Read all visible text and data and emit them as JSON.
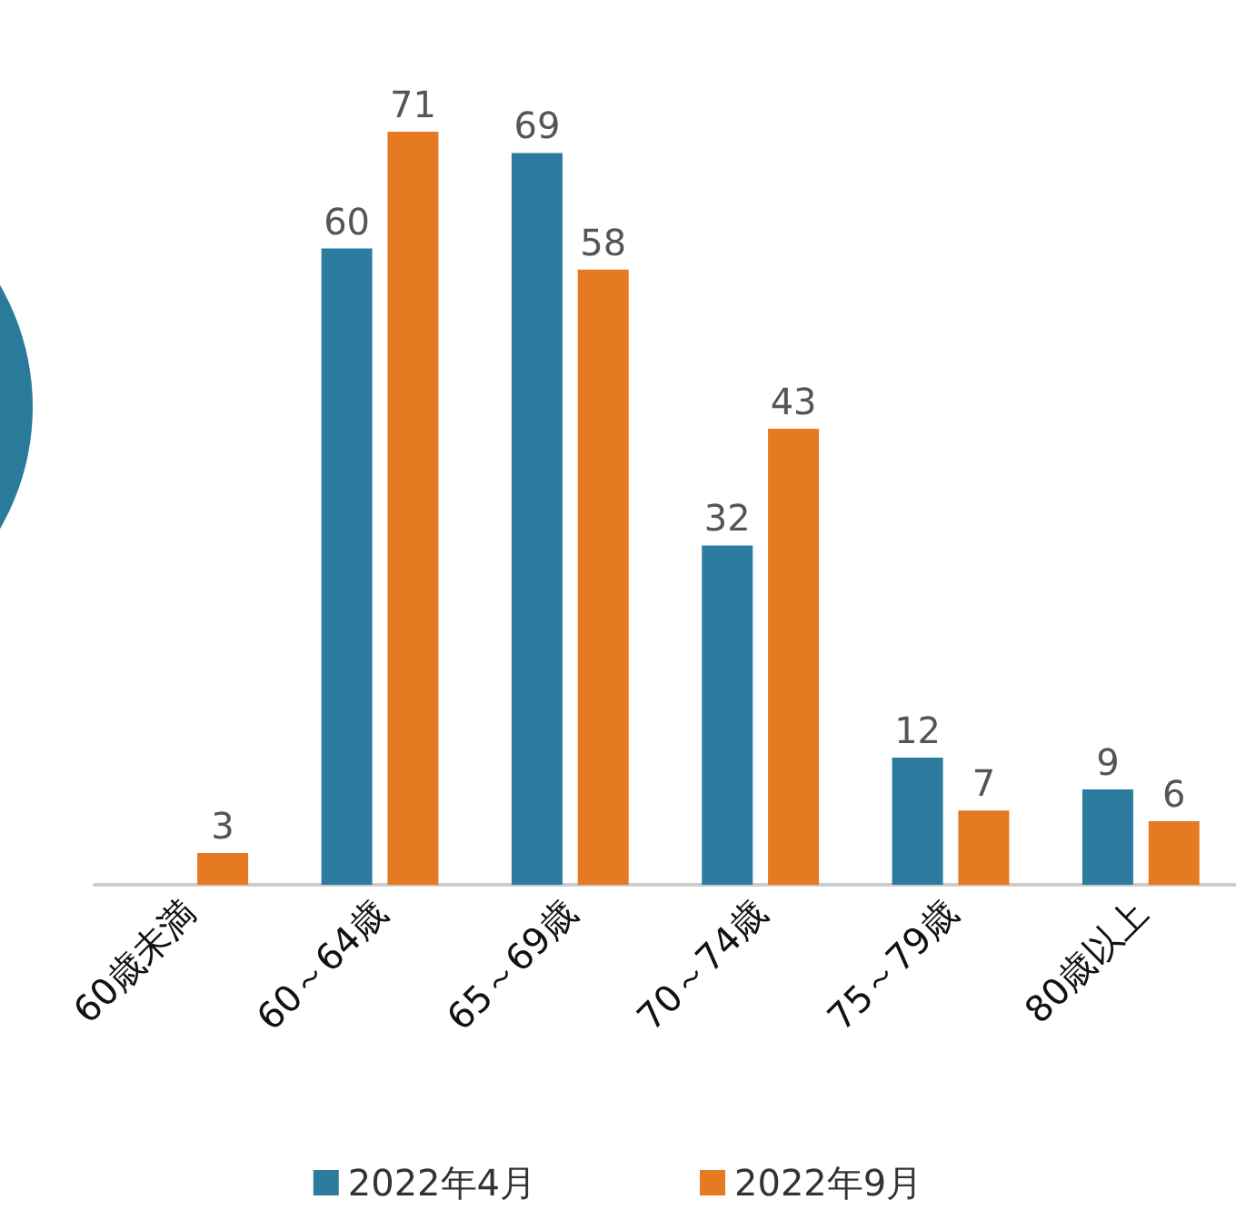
{
  "chart_data": {
    "type": "bar",
    "categories": [
      "60歳未満",
      "60～64歳",
      "65～69歳",
      "70～74歳",
      "75～79歳",
      "80歳以上"
    ],
    "series": [
      {
        "name": "2022年4月",
        "color": "#2d7ca0",
        "values": [
          null,
          60,
          69,
          32,
          12,
          9
        ]
      },
      {
        "name": "2022年9月",
        "color": "#e67a22",
        "values": [
          3,
          71,
          58,
          43,
          7,
          6
        ]
      }
    ],
    "data_labels": true,
    "legend": "bottom",
    "grid": false
  }
}
